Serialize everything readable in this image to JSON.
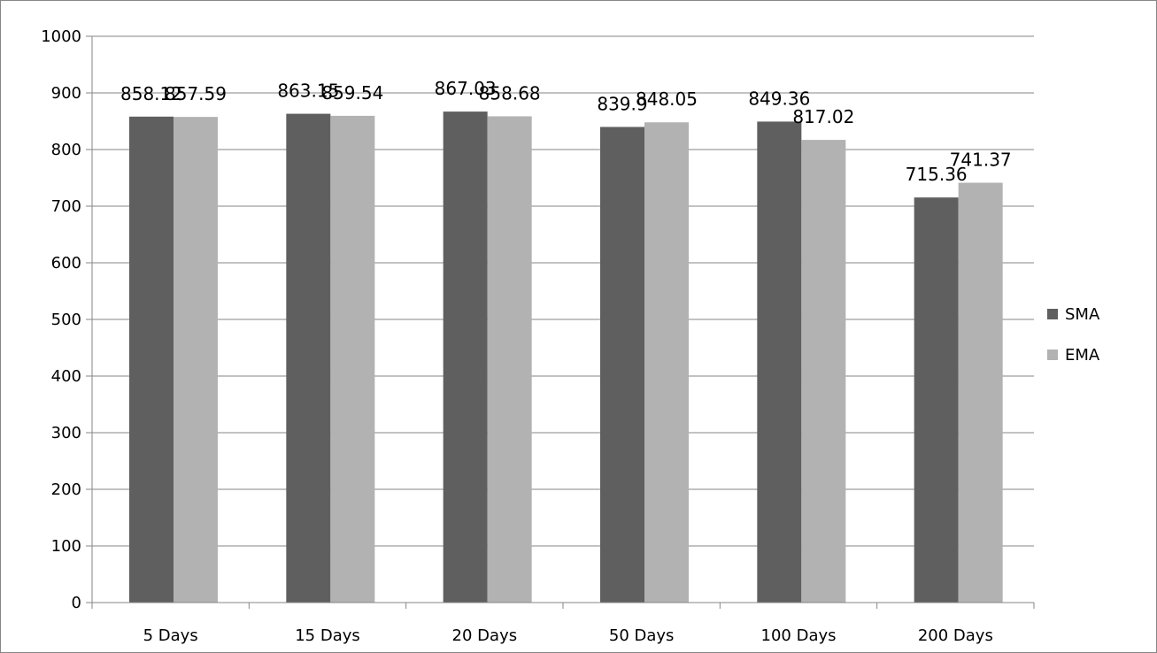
{
  "chart_data": {
    "type": "bar",
    "title": "",
    "xlabel": "",
    "ylabel": "",
    "categories": [
      "5 Days",
      "15 Days",
      "20 Days",
      "50 Days",
      "100 Days",
      "200 Days"
    ],
    "series": [
      {
        "name": "SMA",
        "color": "#5f5f5f",
        "values": [
          858.12,
          863.15,
          867.03,
          839.9,
          849.36,
          715.36
        ],
        "labels": [
          "858.12",
          "863.15",
          "867.03",
          "839.9",
          "849.36",
          "715.36"
        ]
      },
      {
        "name": "EMA",
        "color": "#b2b2b2",
        "values": [
          857.59,
          859.54,
          858.68,
          848.05,
          817.02,
          741.37
        ],
        "labels": [
          "857.59",
          "859.54",
          "858.68",
          "848.05",
          "817.02",
          "741.37"
        ]
      }
    ],
    "ylim": [
      0,
      1000
    ],
    "yticks": [
      0,
      100,
      200,
      300,
      400,
      500,
      600,
      700,
      800,
      900,
      1000
    ],
    "ytick_labels": [
      "0",
      "100",
      "200",
      "300",
      "400",
      "500",
      "600",
      "700",
      "800",
      "900",
      "1000"
    ],
    "grid": true,
    "legend_position": "right"
  }
}
